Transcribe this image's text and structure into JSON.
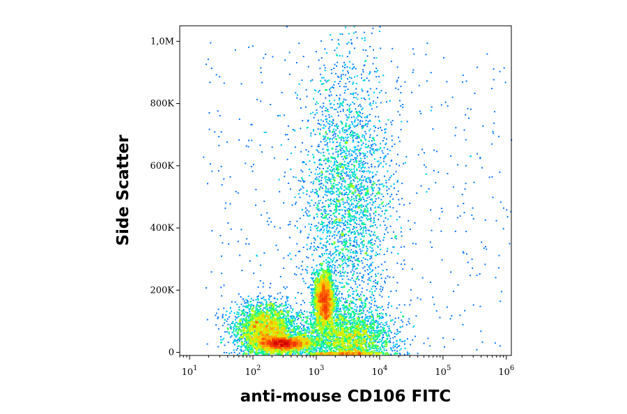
{
  "chart_data": {
    "type": "scatter",
    "title": "",
    "xlabel": "anti-mouse CD106 FITC",
    "ylabel": "Side Scatter",
    "x_scale": "log",
    "xlim": [
      7,
      1200000
    ],
    "ylim": [
      -10000,
      1050000
    ],
    "x_ticks": [
      {
        "base": "10",
        "exp": "1",
        "value": 10
      },
      {
        "base": "10",
        "exp": "2",
        "value": 100
      },
      {
        "base": "10",
        "exp": "3",
        "value": 1000
      },
      {
        "base": "10",
        "exp": "4",
        "value": 10000
      },
      {
        "base": "10",
        "exp": "5",
        "value": 100000
      },
      {
        "base": "10",
        "exp": "6",
        "value": 1000000
      }
    ],
    "y_ticks": [
      {
        "label": "0",
        "value": 0
      },
      {
        "label": "200K",
        "value": 200000
      },
      {
        "label": "400K",
        "value": 400000
      },
      {
        "label": "600K",
        "value": 600000
      },
      {
        "label": "800K",
        "value": 800000
      },
      {
        "label": "1,0M",
        "value": 1000000
      }
    ],
    "grid": false,
    "legend": "none",
    "colormap": [
      "#0000b4",
      "#0050ff",
      "#00c8ff",
      "#00ff80",
      "#c8ff00",
      "#ffc800",
      "#ff5000",
      "#d20000"
    ],
    "populations": [
      {
        "x_center": 300,
        "y_center": 30000,
        "x_spread_decades": 0.22,
        "y_spread": 12000,
        "density": "high"
      },
      {
        "x_center": 1300,
        "y_center": 170000,
        "x_spread_decades": 0.08,
        "y_spread": 45000,
        "density": "high"
      },
      {
        "x_center": 150,
        "y_center": 80000,
        "x_spread_decades": 0.25,
        "y_spread": 40000,
        "density": "medium"
      },
      {
        "x_center": 3000,
        "y_center": 50000,
        "x_spread_decades": 0.35,
        "y_spread": 50000,
        "density": "medium"
      },
      {
        "x_center": 3000,
        "y_center": 500000,
        "x_spread_decades": 0.35,
        "y_spread": 220000,
        "density": "low"
      }
    ]
  }
}
